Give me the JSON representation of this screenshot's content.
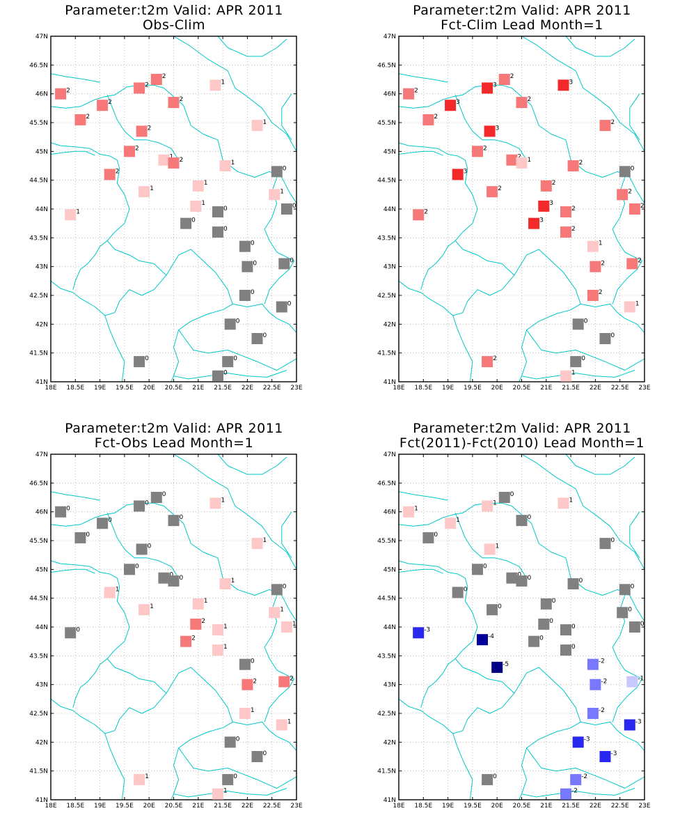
{
  "panels": [
    {
      "title1": "Parameter:t2m Valid: APR 2011",
      "title2": "Obs-Clim",
      "points": [
        {
          "lon": 18.2,
          "lat": 46.0,
          "v": "2"
        },
        {
          "lon": 19.05,
          "lat": 45.8,
          "v": "2"
        },
        {
          "lon": 18.6,
          "lat": 45.55,
          "v": "2"
        },
        {
          "lon": 19.8,
          "lat": 46.1,
          "v": "2"
        },
        {
          "lon": 20.15,
          "lat": 46.25,
          "v": "2"
        },
        {
          "lon": 20.5,
          "lat": 45.85,
          "v": "2"
        },
        {
          "lon": 21.35,
          "lat": 46.15,
          "v": "1"
        },
        {
          "lon": 19.85,
          "lat": 45.35,
          "v": "2"
        },
        {
          "lon": 22.2,
          "lat": 45.45,
          "v": "1"
        },
        {
          "lon": 19.6,
          "lat": 45.0,
          "v": "2"
        },
        {
          "lon": 20.3,
          "lat": 44.85,
          "v": "1"
        },
        {
          "lon": 20.5,
          "lat": 44.8,
          "v": "2"
        },
        {
          "lon": 21.55,
          "lat": 44.75,
          "v": "1"
        },
        {
          "lon": 19.2,
          "lat": 44.6,
          "v": "2"
        },
        {
          "lon": 22.6,
          "lat": 44.65,
          "v": "0"
        },
        {
          "lon": 19.9,
          "lat": 44.3,
          "v": "1"
        },
        {
          "lon": 21.0,
          "lat": 44.4,
          "v": "1"
        },
        {
          "lon": 22.55,
          "lat": 44.25,
          "v": "1"
        },
        {
          "lon": 20.95,
          "lat": 44.05,
          "v": "1"
        },
        {
          "lon": 21.4,
          "lat": 43.95,
          "v": "0"
        },
        {
          "lon": 18.4,
          "lat": 43.9,
          "v": "1"
        },
        {
          "lon": 22.8,
          "lat": 44.0,
          "v": "0"
        },
        {
          "lon": 20.75,
          "lat": 43.75,
          "v": "0"
        },
        {
          "lon": 21.4,
          "lat": 43.6,
          "v": "0"
        },
        {
          "lon": 21.95,
          "lat": 43.35,
          "v": "0"
        },
        {
          "lon": 22.0,
          "lat": 43.0,
          "v": "0"
        },
        {
          "lon": 22.75,
          "lat": 43.05,
          "v": "0"
        },
        {
          "lon": 21.95,
          "lat": 42.5,
          "v": "0"
        },
        {
          "lon": 22.7,
          "lat": 42.3,
          "v": "0"
        },
        {
          "lon": 21.65,
          "lat": 42.0,
          "v": "0"
        },
        {
          "lon": 22.2,
          "lat": 41.75,
          "v": "0"
        },
        {
          "lon": 19.8,
          "lat": 41.35,
          "v": "0"
        },
        {
          "lon": 21.6,
          "lat": 41.35,
          "v": "0"
        },
        {
          "lon": 21.4,
          "lat": 41.1,
          "v": "0"
        }
      ]
    },
    {
      "title1": "Parameter:t2m Valid: APR 2011",
      "title2": "Fct-Clim Lead Month=1",
      "points": [
        {
          "lon": 18.2,
          "lat": 46.0,
          "v": "2"
        },
        {
          "lon": 19.05,
          "lat": 45.8,
          "v": "3"
        },
        {
          "lon": 18.6,
          "lat": 45.55,
          "v": "2"
        },
        {
          "lon": 19.8,
          "lat": 46.1,
          "v": "3"
        },
        {
          "lon": 20.15,
          "lat": 46.25,
          "v": "2"
        },
        {
          "lon": 20.5,
          "lat": 45.85,
          "v": "2"
        },
        {
          "lon": 21.35,
          "lat": 46.15,
          "v": "3"
        },
        {
          "lon": 19.85,
          "lat": 45.35,
          "v": "3"
        },
        {
          "lon": 22.2,
          "lat": 45.45,
          "v": "2"
        },
        {
          "lon": 19.6,
          "lat": 45.0,
          "v": "2"
        },
        {
          "lon": 20.3,
          "lat": 44.85,
          "v": "2"
        },
        {
          "lon": 20.5,
          "lat": 44.8,
          "v": "1"
        },
        {
          "lon": 21.55,
          "lat": 44.75,
          "v": "2"
        },
        {
          "lon": 19.2,
          "lat": 44.6,
          "v": "3"
        },
        {
          "lon": 22.6,
          "lat": 44.65,
          "v": "0"
        },
        {
          "lon": 19.9,
          "lat": 44.3,
          "v": "2"
        },
        {
          "lon": 21.0,
          "lat": 44.4,
          "v": "2"
        },
        {
          "lon": 22.55,
          "lat": 44.25,
          "v": "2"
        },
        {
          "lon": 20.95,
          "lat": 44.05,
          "v": "3"
        },
        {
          "lon": 21.4,
          "lat": 43.95,
          "v": "2"
        },
        {
          "lon": 18.4,
          "lat": 43.9,
          "v": "2"
        },
        {
          "lon": 22.8,
          "lat": 44.0,
          "v": "2"
        },
        {
          "lon": 20.75,
          "lat": 43.75,
          "v": "3"
        },
        {
          "lon": 21.4,
          "lat": 43.6,
          "v": "2"
        },
        {
          "lon": 21.95,
          "lat": 43.35,
          "v": "1"
        },
        {
          "lon": 22.0,
          "lat": 43.0,
          "v": "2"
        },
        {
          "lon": 22.75,
          "lat": 43.05,
          "v": "2"
        },
        {
          "lon": 21.95,
          "lat": 42.5,
          "v": "2"
        },
        {
          "lon": 22.7,
          "lat": 42.3,
          "v": "1"
        },
        {
          "lon": 21.65,
          "lat": 42.0,
          "v": "0"
        },
        {
          "lon": 22.2,
          "lat": 41.75,
          "v": "0"
        },
        {
          "lon": 19.8,
          "lat": 41.35,
          "v": "2"
        },
        {
          "lon": 21.6,
          "lat": 41.35,
          "v": "0"
        },
        {
          "lon": 21.4,
          "lat": 41.1,
          "v": "1"
        }
      ]
    },
    {
      "title1": "Parameter:t2m Valid: APR 2011",
      "title2": "Fct-Obs Lead Month=1",
      "points": [
        {
          "lon": 18.2,
          "lat": 46.0,
          "v": "0"
        },
        {
          "lon": 19.05,
          "lat": 45.8,
          "v": "0"
        },
        {
          "lon": 18.6,
          "lat": 45.55,
          "v": "0"
        },
        {
          "lon": 19.8,
          "lat": 46.1,
          "v": "0"
        },
        {
          "lon": 20.15,
          "lat": 46.25,
          "v": "0"
        },
        {
          "lon": 20.5,
          "lat": 45.85,
          "v": "0"
        },
        {
          "lon": 21.35,
          "lat": 46.15,
          "v": "1"
        },
        {
          "lon": 19.85,
          "lat": 45.35,
          "v": "0"
        },
        {
          "lon": 22.2,
          "lat": 45.45,
          "v": "1"
        },
        {
          "lon": 19.6,
          "lat": 45.0,
          "v": "0"
        },
        {
          "lon": 20.3,
          "lat": 44.85,
          "v": "0"
        },
        {
          "lon": 20.5,
          "lat": 44.8,
          "v": "0"
        },
        {
          "lon": 21.55,
          "lat": 44.75,
          "v": "1"
        },
        {
          "lon": 19.2,
          "lat": 44.6,
          "v": "1"
        },
        {
          "lon": 22.6,
          "lat": 44.65,
          "v": "0"
        },
        {
          "lon": 19.9,
          "lat": 44.3,
          "v": "1"
        },
        {
          "lon": 21.0,
          "lat": 44.4,
          "v": "1"
        },
        {
          "lon": 22.55,
          "lat": 44.25,
          "v": "1"
        },
        {
          "lon": 20.95,
          "lat": 44.05,
          "v": "2"
        },
        {
          "lon": 21.4,
          "lat": 43.95,
          "v": "1"
        },
        {
          "lon": 18.4,
          "lat": 43.9,
          "v": "0"
        },
        {
          "lon": 22.8,
          "lat": 44.0,
          "v": "1"
        },
        {
          "lon": 20.75,
          "lat": 43.75,
          "v": "2"
        },
        {
          "lon": 21.4,
          "lat": 43.6,
          "v": "1"
        },
        {
          "lon": 21.95,
          "lat": 43.35,
          "v": "0"
        },
        {
          "lon": 22.0,
          "lat": 43.0,
          "v": "2"
        },
        {
          "lon": 22.75,
          "lat": 43.05,
          "v": "2"
        },
        {
          "lon": 21.95,
          "lat": 42.5,
          "v": "1"
        },
        {
          "lon": 22.7,
          "lat": 42.3,
          "v": "1"
        },
        {
          "lon": 21.65,
          "lat": 42.0,
          "v": "0"
        },
        {
          "lon": 22.2,
          "lat": 41.75,
          "v": "0"
        },
        {
          "lon": 19.8,
          "lat": 41.35,
          "v": "1"
        },
        {
          "lon": 21.6,
          "lat": 41.35,
          "v": "0"
        },
        {
          "lon": 21.4,
          "lat": 41.1,
          "v": "1"
        }
      ]
    },
    {
      "title1": "Parameter:t2m Valid: APR 2011",
      "title2": "Fct(2011)-Fct(2010) Lead Month=1",
      "points": [
        {
          "lon": 18.2,
          "lat": 46.0,
          "v": "1"
        },
        {
          "lon": 19.05,
          "lat": 45.8,
          "v": "1"
        },
        {
          "lon": 18.6,
          "lat": 45.55,
          "v": "0"
        },
        {
          "lon": 19.8,
          "lat": 46.1,
          "v": "1"
        },
        {
          "lon": 20.15,
          "lat": 46.25,
          "v": "0"
        },
        {
          "lon": 20.5,
          "lat": 45.85,
          "v": "0"
        },
        {
          "lon": 21.35,
          "lat": 46.15,
          "v": "1"
        },
        {
          "lon": 19.85,
          "lat": 45.35,
          "v": "1"
        },
        {
          "lon": 22.2,
          "lat": 45.45,
          "v": "0"
        },
        {
          "lon": 19.6,
          "lat": 45.0,
          "v": "0"
        },
        {
          "lon": 20.3,
          "lat": 44.85,
          "v": "0"
        },
        {
          "lon": 20.5,
          "lat": 44.8,
          "v": "0"
        },
        {
          "lon": 21.55,
          "lat": 44.75,
          "v": "0"
        },
        {
          "lon": 19.2,
          "lat": 44.6,
          "v": "0"
        },
        {
          "lon": 22.6,
          "lat": 44.65,
          "v": "0"
        },
        {
          "lon": 19.9,
          "lat": 44.3,
          "v": "0"
        },
        {
          "lon": 21.0,
          "lat": 44.4,
          "v": "0"
        },
        {
          "lon": 22.55,
          "lat": 44.25,
          "v": "0"
        },
        {
          "lon": 20.95,
          "lat": 44.05,
          "v": "0"
        },
        {
          "lon": 21.4,
          "lat": 43.95,
          "v": "0"
        },
        {
          "lon": 18.4,
          "lat": 43.9,
          "v": "-3"
        },
        {
          "lon": 22.8,
          "lat": 44.0,
          "v": "0"
        },
        {
          "lon": 20.75,
          "lat": 43.75,
          "v": "0"
        },
        {
          "lon": 21.4,
          "lat": 43.6,
          "v": "0"
        },
        {
          "lon": 19.7,
          "lat": 43.78,
          "v": "-4"
        },
        {
          "lon": 20.0,
          "lat": 43.3,
          "v": "-5"
        },
        {
          "lon": 21.95,
          "lat": 43.35,
          "v": "-2"
        },
        {
          "lon": 22.0,
          "lat": 43.0,
          "v": "-2"
        },
        {
          "lon": 22.75,
          "lat": 43.05,
          "v": "-1"
        },
        {
          "lon": 21.95,
          "lat": 42.5,
          "v": "-2"
        },
        {
          "lon": 22.7,
          "lat": 42.3,
          "v": "-3"
        },
        {
          "lon": 21.65,
          "lat": 42.0,
          "v": "-3"
        },
        {
          "lon": 22.2,
          "lat": 41.75,
          "v": "-3"
        },
        {
          "lon": 19.8,
          "lat": 41.35,
          "v": "0"
        },
        {
          "lon": 21.6,
          "lat": 41.35,
          "v": "-2"
        },
        {
          "lon": 21.4,
          "lat": 41.1,
          "v": "-2"
        }
      ]
    }
  ],
  "axes": {
    "lon_ticks": [
      "18E",
      "18.5E",
      "19E",
      "19.5E",
      "20E",
      "20.5E",
      "21E",
      "21.5E",
      "22E",
      "22.5E",
      "23E"
    ],
    "lat_ticks": [
      "41N",
      "41.5N",
      "42N",
      "42.5N",
      "43N",
      "43.5N",
      "44N",
      "44.5N",
      "45N",
      "45.5N",
      "46N",
      "46.5N",
      "47N"
    ],
    "lon_range": [
      18,
      23
    ],
    "lat_range": [
      41,
      47
    ]
  },
  "colors": {
    "grey": "#808080",
    "pos": {
      "1": "#ffc8c8",
      "2": "#f77878",
      "3": "#f32828"
    },
    "neg": {
      "-1": "#c8c8ff",
      "-2": "#7878ff",
      "-3": "#2828f0",
      "-4": "#00009b",
      "-5": "#000080"
    },
    "border": "#00c8c8",
    "grid": "#aaaaaa"
  }
}
